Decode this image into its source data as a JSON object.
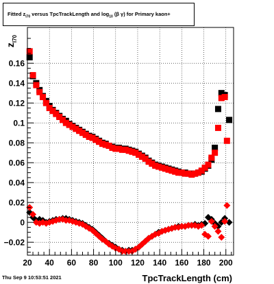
{
  "title": {
    "prefix": "Fitted  z",
    "sub1": "l70",
    "middle": "  versus TpcTrackLength and log",
    "sub2": "10",
    "suffix": " (β  γ) for Primary kaon+"
  },
  "footer": "Thu Sep  9 10:53:51 2021",
  "colors": {
    "series_black": "#000000",
    "series_red": "#ff0000",
    "grid": "#000000"
  },
  "chart_data": {
    "type": "scatter",
    "xlabel": "TpcTrackLength (cm)",
    "ylabel": "z",
    "ylabel_sub": "l70",
    "xlim": [
      20,
      207
    ],
    "ylim": [
      -0.033,
      0.196
    ],
    "grid": true,
    "x_ticks": [
      20,
      40,
      60,
      80,
      100,
      120,
      140,
      160,
      180,
      200
    ],
    "y_ticks": [
      -0.02,
      0,
      0.02,
      0.04,
      0.06,
      0.08,
      0.1,
      0.12,
      0.14,
      0.16
    ],
    "y_tick_labels": [
      "−0.02",
      "0",
      "0.02",
      "0.04",
      "0.06",
      "0.08",
      "0.1",
      "0.12",
      "0.14",
      "0.16"
    ],
    "series": [
      {
        "color": "#000000",
        "marker": "square",
        "points": [
          [
            22,
            0.166
          ],
          [
            25,
            0.147
          ],
          [
            28,
            0.14
          ],
          [
            31,
            0.133
          ],
          [
            34,
            0.127
          ],
          [
            37,
            0.122
          ],
          [
            40,
            0.117
          ],
          [
            43,
            0.113
          ],
          [
            46,
            0.11
          ],
          [
            49,
            0.107
          ],
          [
            52,
            0.104
          ],
          [
            55,
            0.102
          ],
          [
            58,
            0.099
          ],
          [
            61,
            0.097
          ],
          [
            64,
            0.095
          ],
          [
            67,
            0.093
          ],
          [
            70,
            0.091
          ],
          [
            73,
            0.089
          ],
          [
            76,
            0.087
          ],
          [
            79,
            0.086
          ],
          [
            82,
            0.084
          ],
          [
            85,
            0.082
          ],
          [
            88,
            0.08
          ],
          [
            91,
            0.079
          ],
          [
            94,
            0.077
          ],
          [
            97,
            0.076
          ],
          [
            100,
            0.075
          ],
          [
            103,
            0.075
          ],
          [
            106,
            0.074
          ],
          [
            109,
            0.074
          ],
          [
            112,
            0.073
          ],
          [
            115,
            0.072
          ],
          [
            118,
            0.071
          ],
          [
            121,
            0.069
          ],
          [
            124,
            0.067
          ],
          [
            127,
            0.065
          ],
          [
            130,
            0.062
          ],
          [
            133,
            0.06
          ],
          [
            136,
            0.058
          ],
          [
            139,
            0.057
          ],
          [
            142,
            0.056
          ],
          [
            145,
            0.055
          ],
          [
            148,
            0.054
          ],
          [
            151,
            0.053
          ],
          [
            154,
            0.052
          ],
          [
            157,
            0.051
          ],
          [
            160,
            0.05
          ],
          [
            163,
            0.05
          ],
          [
            166,
            0.049
          ],
          [
            169,
            0.049
          ],
          [
            172,
            0.049
          ],
          [
            175,
            0.05
          ],
          [
            178,
            0.051
          ],
          [
            181,
            0.054
          ],
          [
            184,
            0.057
          ],
          [
            187,
            0.063
          ],
          [
            190,
            0.075
          ],
          [
            193,
            0.114
          ],
          [
            196,
            0.13
          ],
          [
            199,
            0.128
          ],
          [
            203,
            0.103
          ]
        ]
      },
      {
        "color": "#ff0000",
        "marker": "square",
        "points": [
          [
            22,
            0.172
          ],
          [
            25,
            0.148
          ],
          [
            28,
            0.138
          ],
          [
            31,
            0.131
          ],
          [
            34,
            0.126
          ],
          [
            37,
            0.12
          ],
          [
            40,
            0.115
          ],
          [
            43,
            0.112
          ],
          [
            46,
            0.109
          ],
          [
            49,
            0.106
          ],
          [
            52,
            0.103
          ],
          [
            55,
            0.1
          ],
          [
            58,
            0.098
          ],
          [
            61,
            0.096
          ],
          [
            64,
            0.094
          ],
          [
            67,
            0.092
          ],
          [
            70,
            0.09
          ],
          [
            73,
            0.088
          ],
          [
            76,
            0.086
          ],
          [
            79,
            0.085
          ],
          [
            82,
            0.083
          ],
          [
            85,
            0.081
          ],
          [
            88,
            0.079
          ],
          [
            91,
            0.078
          ],
          [
            94,
            0.077
          ],
          [
            97,
            0.075
          ],
          [
            100,
            0.074
          ],
          [
            103,
            0.074
          ],
          [
            106,
            0.073
          ],
          [
            109,
            0.073
          ],
          [
            112,
            0.072
          ],
          [
            115,
            0.071
          ],
          [
            118,
            0.07
          ],
          [
            121,
            0.068
          ],
          [
            124,
            0.066
          ],
          [
            127,
            0.064
          ],
          [
            130,
            0.061
          ],
          [
            133,
            0.059
          ],
          [
            136,
            0.057
          ],
          [
            139,
            0.056
          ],
          [
            142,
            0.055
          ],
          [
            145,
            0.054
          ],
          [
            148,
            0.053
          ],
          [
            151,
            0.052
          ],
          [
            154,
            0.051
          ],
          [
            157,
            0.05
          ],
          [
            160,
            0.05
          ],
          [
            163,
            0.049
          ],
          [
            166,
            0.049
          ],
          [
            169,
            0.048
          ],
          [
            172,
            0.049
          ],
          [
            175,
            0.05
          ],
          [
            178,
            0.052
          ],
          [
            181,
            0.055
          ],
          [
            184,
            0.058
          ],
          [
            187,
            0.065
          ],
          [
            190,
            0.07
          ],
          [
            193,
            0.095
          ],
          [
            196,
            0.125
          ],
          [
            199,
            0.126
          ],
          [
            201,
            0.082
          ]
        ]
      },
      {
        "color": "#000000",
        "marker": "diamond",
        "points": [
          [
            22,
            0.01
          ],
          [
            25,
            0.005
          ],
          [
            28,
            0.002
          ],
          [
            31,
            0.003
          ],
          [
            34,
            0.002
          ],
          [
            37,
            0.0
          ],
          [
            40,
            0.001
          ],
          [
            43,
            0.002
          ],
          [
            46,
            0.003
          ],
          [
            49,
            0.003
          ],
          [
            52,
            0.004
          ],
          [
            55,
            0.004
          ],
          [
            58,
            0.003
          ],
          [
            61,
            0.002
          ],
          [
            64,
            0.001
          ],
          [
            67,
            0.0
          ],
          [
            70,
            -0.001
          ],
          [
            73,
            -0.003
          ],
          [
            76,
            -0.005
          ],
          [
            79,
            -0.007
          ],
          [
            82,
            -0.01
          ],
          [
            85,
            -0.013
          ],
          [
            88,
            -0.016
          ],
          [
            91,
            -0.019
          ],
          [
            94,
            -0.021
          ],
          [
            97,
            -0.023
          ],
          [
            100,
            -0.025
          ],
          [
            103,
            -0.027
          ],
          [
            106,
            -0.028
          ],
          [
            109,
            -0.029
          ],
          [
            112,
            -0.028
          ],
          [
            115,
            -0.028
          ],
          [
            118,
            -0.027
          ],
          [
            121,
            -0.025
          ],
          [
            124,
            -0.022
          ],
          [
            127,
            -0.019
          ],
          [
            130,
            -0.016
          ],
          [
            133,
            -0.014
          ],
          [
            136,
            -0.012
          ],
          [
            139,
            -0.01
          ],
          [
            142,
            -0.009
          ],
          [
            145,
            -0.008
          ],
          [
            148,
            -0.007
          ],
          [
            151,
            -0.006
          ],
          [
            154,
            -0.005
          ],
          [
            157,
            -0.004
          ],
          [
            160,
            -0.004
          ],
          [
            163,
            -0.004
          ],
          [
            166,
            -0.003
          ],
          [
            169,
            -0.003
          ],
          [
            172,
            -0.002
          ],
          [
            175,
            -0.003
          ],
          [
            178,
            -0.002
          ],
          [
            181,
            -0.001
          ],
          [
            184,
            0.005
          ],
          [
            187,
            0.003
          ],
          [
            190,
            -0.001
          ],
          [
            193,
            -0.004
          ],
          [
            196,
            0.0
          ],
          [
            199,
            0.004
          ],
          [
            203,
            0.0
          ]
        ]
      },
      {
        "color": "#ff0000",
        "marker": "diamond",
        "points": [
          [
            22,
            0.015
          ],
          [
            25,
            0.008
          ],
          [
            28,
            0.0
          ],
          [
            31,
            -0.001
          ],
          [
            34,
            0.0
          ],
          [
            37,
            -0.001
          ],
          [
            40,
            0.0
          ],
          [
            43,
            0.001
          ],
          [
            46,
            0.002
          ],
          [
            49,
            0.003
          ],
          [
            52,
            0.003
          ],
          [
            55,
            0.002
          ],
          [
            58,
            0.002
          ],
          [
            61,
            0.001
          ],
          [
            64,
            0.0
          ],
          [
            67,
            -0.001
          ],
          [
            70,
            -0.002
          ],
          [
            73,
            -0.004
          ],
          [
            76,
            -0.006
          ],
          [
            79,
            -0.008
          ],
          [
            82,
            -0.011
          ],
          [
            85,
            -0.014
          ],
          [
            88,
            -0.017
          ],
          [
            91,
            -0.019
          ],
          [
            94,
            -0.022
          ],
          [
            97,
            -0.024
          ],
          [
            100,
            -0.026
          ],
          [
            103,
            -0.027
          ],
          [
            106,
            -0.029
          ],
          [
            109,
            -0.029
          ],
          [
            112,
            -0.029
          ],
          [
            115,
            -0.029
          ],
          [
            118,
            -0.027
          ],
          [
            121,
            -0.025
          ],
          [
            124,
            -0.022
          ],
          [
            127,
            -0.019
          ],
          [
            130,
            -0.016
          ],
          [
            133,
            -0.014
          ],
          [
            136,
            -0.012
          ],
          [
            139,
            -0.011
          ],
          [
            142,
            -0.009
          ],
          [
            145,
            -0.008
          ],
          [
            148,
            -0.007
          ],
          [
            151,
            -0.006
          ],
          [
            154,
            -0.005
          ],
          [
            157,
            -0.005
          ],
          [
            160,
            -0.004
          ],
          [
            163,
            -0.004
          ],
          [
            166,
            -0.003
          ],
          [
            169,
            -0.003
          ],
          [
            172,
            -0.003
          ],
          [
            175,
            -0.004
          ],
          [
            178,
            -0.003
          ],
          [
            181,
            -0.012
          ],
          [
            184,
            -0.014
          ],
          [
            187,
            0.001
          ],
          [
            190,
            -0.004
          ],
          [
            193,
            -0.009
          ],
          [
            196,
            -0.015
          ],
          [
            199,
            0.001
          ],
          [
            201,
            0.017
          ]
        ]
      }
    ]
  }
}
